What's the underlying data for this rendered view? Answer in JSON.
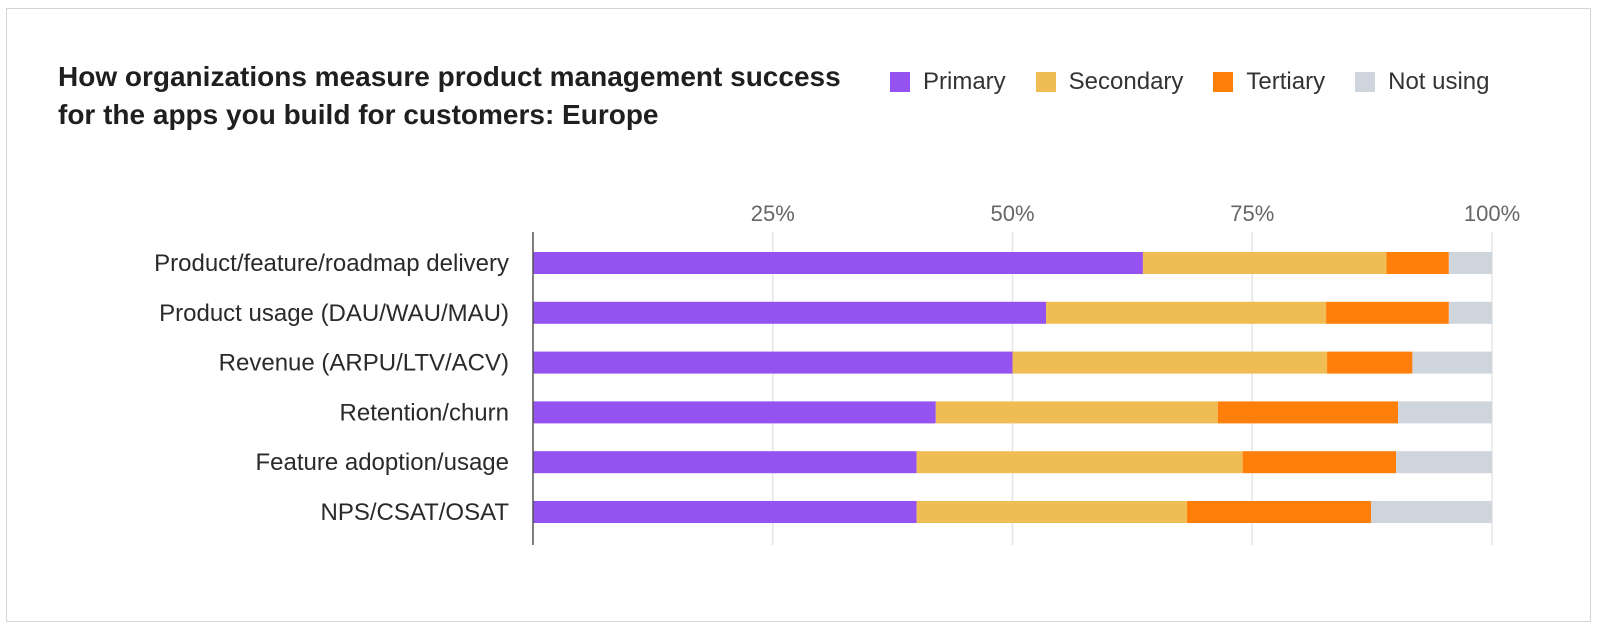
{
  "chart_data": {
    "type": "bar",
    "orientation": "horizontal-stacked",
    "title": "How organizations measure product management success for the apps you build for customers: Europe",
    "categories": [
      "Product/feature/roadmap delivery",
      "Product usage (DAU/WAU/MAU)",
      "Revenue (ARPU/LTV/ACV)",
      "Retention/churn",
      "Feature adoption/usage",
      "NPS/CSAT/OSAT"
    ],
    "series": [
      {
        "name": "Primary",
        "color": "#9452f0",
        "values": [
          63.6,
          53.5,
          50.0,
          42.0,
          40.0,
          40.0
        ]
      },
      {
        "name": "Secondary",
        "color": "#f0bd55",
        "values": [
          25.4,
          29.2,
          32.8,
          29.4,
          34.0,
          28.2
        ]
      },
      {
        "name": "Tertiary",
        "color": "#ff7f0a",
        "values": [
          6.5,
          12.8,
          8.9,
          18.8,
          16.0,
          19.2
        ]
      },
      {
        "name": "Not using",
        "color": "#cfd5dd",
        "values": [
          4.5,
          4.5,
          8.3,
          9.8,
          10.0,
          12.6
        ]
      }
    ],
    "xticks": [
      "25%",
      "50%",
      "75%",
      "100%"
    ],
    "xtick_values": [
      25,
      50,
      75,
      100
    ],
    "xlim": [
      0,
      100
    ],
    "grid": true,
    "legend_position": "top-right"
  }
}
